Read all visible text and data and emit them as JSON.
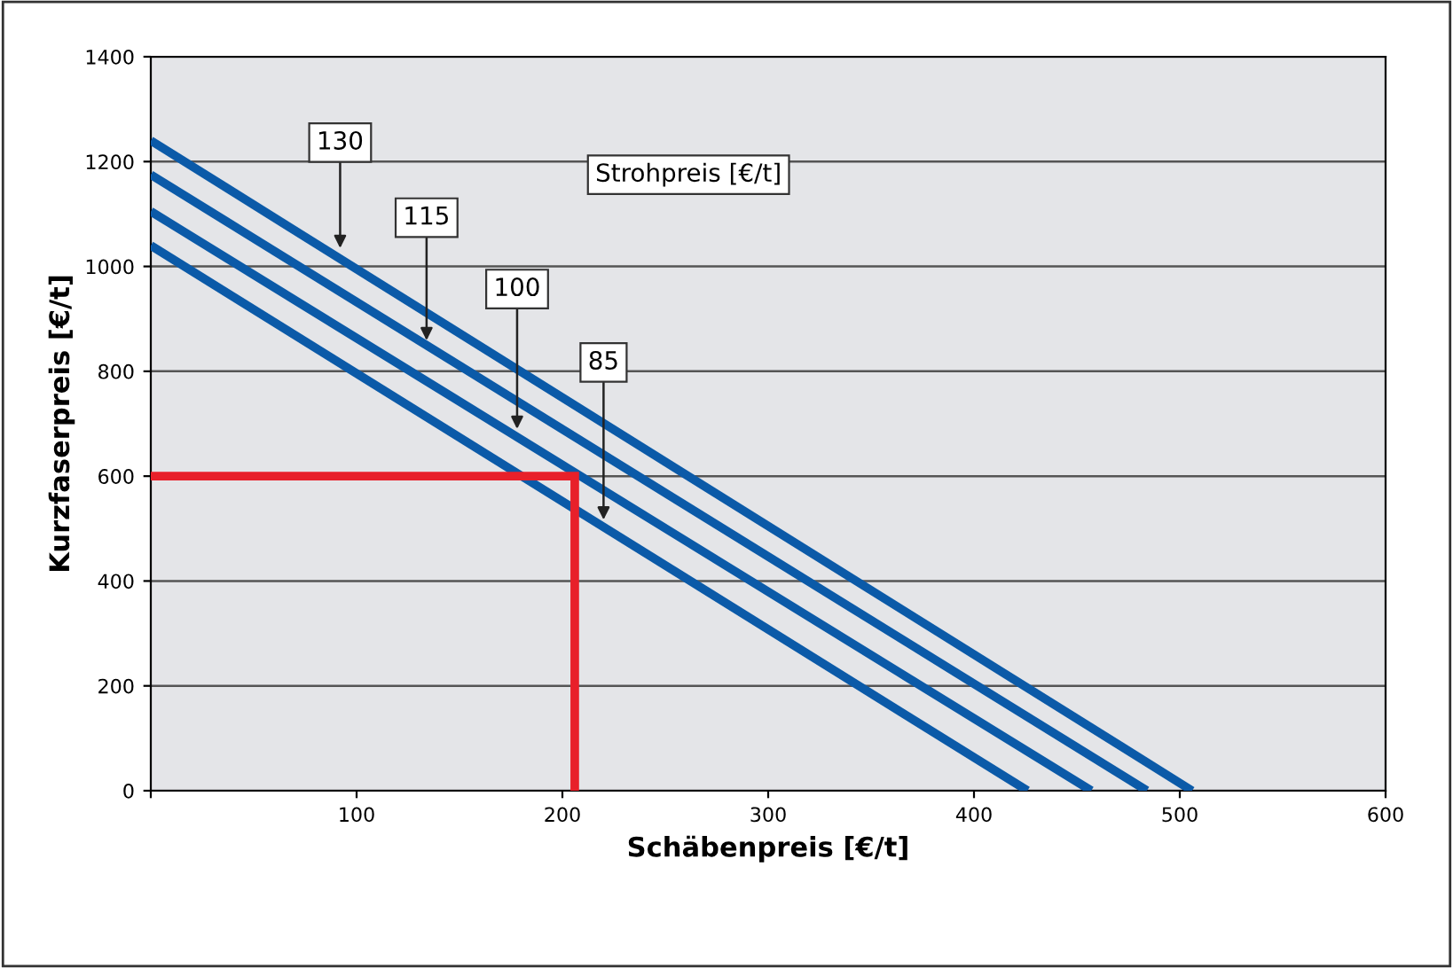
{
  "chart_data": {
    "type": "line",
    "xlabel": "Schäbenpreis [€/t]",
    "ylabel": "Kurzfaserpreis [€/t]",
    "series": [
      {
        "x": [
          0,
          506
        ],
        "values": [
          1240,
          0
        ],
        "color": "#0b5aa8"
      },
      {
        "x": [
          0,
          484
        ],
        "values": [
          1175,
          0
        ],
        "color": "#0b5aa8"
      },
      {
        "x": [
          0,
          457
        ],
        "values": [
          1105,
          0
        ],
        "color": "#0b5aa8"
      },
      {
        "x": [
          0,
          426
        ],
        "values": [
          1040,
          0
        ],
        "color": "#0b5aa8"
      },
      {
        "x": [
          0,
          206,
          206
        ],
        "values": [
          600,
          600,
          0
        ],
        "color": "#e8202a"
      }
    ],
    "annotations": [
      {
        "text": "130",
        "x": 92,
        "y": 1035
      },
      {
        "text": "115",
        "x": 134,
        "y": 859
      },
      {
        "text": "100",
        "x": 178,
        "y": 690
      },
      {
        "text": "85",
        "x": 220,
        "y": 517
      },
      "Strohpreis [€/t]"
    ],
    "xlim": [
      0,
      600
    ],
    "xticks": [
      {
        "value": 0,
        "label": null
      },
      100,
      200,
      300,
      400,
      500,
      600
    ],
    "ylim": [
      0,
      1400
    ],
    "yticks": [
      0,
      200,
      400,
      600,
      800,
      1000,
      1200,
      1400
    ],
    "grid": "y",
    "marker": "none",
    "line_style": "solid",
    "legend": false
  }
}
